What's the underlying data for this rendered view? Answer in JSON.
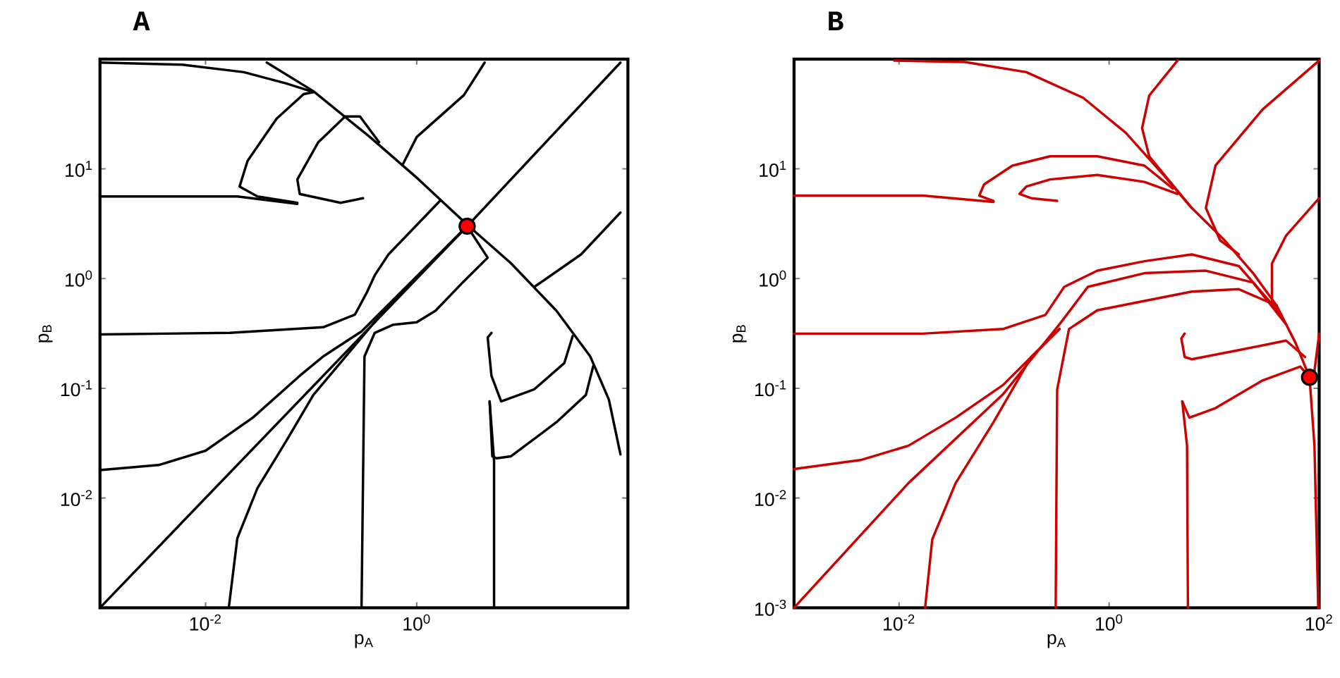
{
  "chart_data": [
    {
      "type": "line",
      "title": "A",
      "xlabel": "p$_{A}$",
      "ylabel": "p$_{B}$",
      "log": "xy",
      "xlim": [
        0.001,
        100
      ],
      "ylim": [
        0.001,
        100
      ],
      "xticks": [
        {
          "value": 0.01,
          "label": "10$^{-2}$"
        },
        {
          "value": 1,
          "label": "10$^{0}$"
        }
      ],
      "yticks": [
        {
          "value": 0.01,
          "label": "10$^{-2}$"
        },
        {
          "value": 0.1,
          "label": "10$^{-1}$"
        },
        {
          "value": 1,
          "label": "10$^{0}$"
        },
        {
          "value": 10,
          "label": "10$^{1}$"
        }
      ],
      "series": [
        {
          "color": "#000000",
          "x": [
            0.001,
            3,
            85
          ],
          "values": [
            0.001,
            3,
            93
          ]
        },
        {
          "color": "#000000",
          "x": [
            0.001,
            0.006,
            0.023,
            0.058,
            0.105
          ],
          "values": [
            93,
            89,
            76,
            60,
            50
          ]
        },
        {
          "color": "#000000",
          "x": [
            0.038,
            0.105,
            0.36,
            1,
            3,
            7.8,
            21,
            44,
            66,
            85
          ],
          "values": [
            93,
            51,
            19.5,
            8.3,
            3.1,
            1.38,
            0.51,
            0.195,
            0.079,
            0.025
          ]
        },
        {
          "color": "#000000",
          "x": [
            0.001,
            0.02,
            0.074
          ],
          "values": [
            5.6,
            5.6,
            4.8
          ]
        },
        {
          "color": "#000000",
          "x": [
            0.074,
            0.031,
            0.021,
            0.025,
            0.047,
            0.085,
            0.105
          ],
          "values": [
            4.9,
            5.6,
            6.9,
            11.8,
            28.6,
            48,
            50
          ]
        },
        {
          "color": "#000000",
          "x": [
            0.31,
            0.19,
            0.078,
            0.074,
            0.117,
            0.21,
            0.29,
            0.44
          ],
          "values": [
            5.4,
            4.9,
            5.9,
            8,
            17.5,
            30,
            30,
            17.5
          ]
        },
        {
          "color": "#000000",
          "x": [
            0.74,
            1,
            2.8,
            4.4
          ],
          "values": [
            11,
            19.5,
            47,
            93
          ]
        },
        {
          "color": "#000000",
          "x": [
            0.001,
            0.017,
            0.13,
            0.26,
            0.34,
            0.4,
            0.54,
            1.66
          ],
          "values": [
            0.31,
            0.32,
            0.36,
            0.47,
            0.76,
            1.07,
            1.66,
            5.1
          ]
        },
        {
          "color": "#000000",
          "x": [
            0.001,
            0.0036,
            0.01,
            0.028,
            0.078,
            0.13,
            0.3,
            3
          ],
          "values": [
            0.018,
            0.02,
            0.027,
            0.054,
            0.13,
            0.195,
            0.33,
            3
          ]
        },
        {
          "color": "#000000",
          "x": [
            0.0166,
            0.02,
            0.031,
            0.058,
            0.105,
            0.5,
            3
          ],
          "values": [
            0.001,
            0.0043,
            0.0123,
            0.033,
            0.087,
            0.52,
            3
          ]
        },
        {
          "color": "#000000",
          "x": [
            0.3,
            0.32,
            0.4,
            0.6,
            1,
            1.51,
            2.75,
            4.7,
            3
          ],
          "values": [
            0.001,
            0.195,
            0.32,
            0.38,
            0.4,
            0.51,
            0.93,
            1.55,
            3
          ]
        },
        {
          "color": "#000000",
          "x": [
            5.4,
            5.4,
            4.9
          ],
          "values": [
            0.001,
            0.022,
            0.076
          ]
        },
        {
          "color": "#000000",
          "x": [
            4.9,
            5.2,
            5.7,
            7.8,
            21,
            40,
            47
          ],
          "values": [
            0.076,
            0.024,
            0.023,
            0.024,
            0.049,
            0.087,
            0.16
          ]
        },
        {
          "color": "#000000",
          "x": [
            5.1,
            4.7,
            5.1,
            6.3,
            13,
            25,
            30
          ],
          "values": [
            0.32,
            0.29,
            0.13,
            0.076,
            0.098,
            0.17,
            0.3
          ]
        },
        {
          "color": "#000000",
          "x": [
            85,
            36,
            13
          ],
          "values": [
            4,
            1.66,
            0.84
          ]
        },
        {
          "type": "scatter",
          "color": "#ff0000",
          "x": [
            3
          ],
          "values": [
            3
          ]
        }
      ]
    },
    {
      "type": "line",
      "title": "B",
      "xlabel": "p$_{A}$",
      "ylabel": "p$_{B}$",
      "log": "xy",
      "xlim": [
        0.001,
        100
      ],
      "ylim": [
        0.001,
        100
      ],
      "xticks": [
        {
          "value": 0.01,
          "label": "10$^{-2}$"
        },
        {
          "value": 1,
          "label": "10$^{0}$"
        },
        {
          "value": 100,
          "label": "10$^{2}$"
        }
      ],
      "yticks": [
        {
          "value": 0.001,
          "label": "10$^{-3}$"
        },
        {
          "value": 0.01,
          "label": "10$^{-2}$"
        },
        {
          "value": 0.1,
          "label": "10$^{-1}$"
        },
        {
          "value": 1,
          "label": "10$^{0}$"
        },
        {
          "value": 10,
          "label": "10$^{1}$"
        }
      ],
      "series": [
        {
          "color": "#cc0000",
          "x": [
            0.009,
            0.0426,
            0.163,
            0.566,
            1.44,
            3.29,
            6.12,
            12.6,
            23.5,
            39.4,
            59.6,
            81
          ],
          "values": [
            97,
            94,
            76,
            44.4,
            21.3,
            8.8,
            4.4,
            2.23,
            1.12,
            0.566,
            0.259,
            0.126
          ]
        },
        {
          "color": "#cc0000",
          "x": [
            4.48,
            2.41,
            2.06,
            2.41,
            3.65,
            6.12
          ],
          "values": [
            97,
            46.6,
            23.5,
            13,
            8,
            4.4
          ]
        },
        {
          "color": "#cc0000",
          "x": [
            100,
            28.9,
            10.3,
            8.34,
            11.4,
            17.2
          ],
          "values": [
            97,
            34.7,
            10.7,
            4.4,
            2.23,
            1.66
          ]
        },
        {
          "color": "#cc0000",
          "x": [
            100,
            48.4,
            35.5,
            35.5,
            39.4
          ],
          "values": [
            5.4,
            2.46,
            1.37,
            0.625,
            0.566
          ]
        },
        {
          "color": "#cc0000",
          "x": [
            0.001,
            0.0168,
            0.0792
          ],
          "values": [
            5.7,
            5.7,
            5
          ]
        },
        {
          "color": "#cc0000",
          "x": [
            0.0792,
            0.058,
            0.0644,
            0.12,
            0.274,
            0.773,
            2.17,
            4.05
          ],
          "values": [
            5.1,
            5.7,
            7.2,
            10.7,
            13,
            13,
            10.7,
            6.6
          ]
        },
        {
          "color": "#cc0000",
          "x": [
            0.32,
            0.181,
            0.14,
            0.163,
            0.274,
            0.773,
            2.17,
            4.48
          ],
          "values": [
            5.1,
            5.4,
            5.9,
            6.9,
            8,
            8.8,
            7.6,
            5.9
          ]
        },
        {
          "color": "#cc0000",
          "x": [
            0.001,
            0.0168,
            0.0975,
            0.247,
            0.374,
            0.773,
            2.17,
            6.12,
            17.2,
            43.7
          ],
          "values": [
            0.315,
            0.315,
            0.347,
            0.466,
            0.84,
            1.18,
            1.44,
            1.66,
            1.3,
            0.466
          ]
        },
        {
          "color": "#cc0000",
          "x": [
            0.001,
            0.0123,
            0.0975,
            0.337,
            0.628,
            2.17,
            8.34,
            23.5,
            48.4
          ],
          "values": [
            0.001,
            0.0137,
            0.088,
            0.383,
            0.84,
            1.12,
            1.18,
            0.92,
            0.383
          ]
        },
        {
          "color": "#cc0000",
          "x": [
            0.001,
            0.0044,
            0.0123,
            0.0346,
            0.0975,
            0.337
          ],
          "values": [
            0.0184,
            0.0223,
            0.03,
            0.054,
            0.107,
            0.347
          ]
        },
        {
          "color": "#cc0000",
          "x": [
            0.0177,
            0.0207,
            0.0346,
            0.0792,
            0.181,
            0.337
          ],
          "values": [
            0.001,
            0.0042,
            0.0137,
            0.049,
            0.193,
            0.347
          ]
        },
        {
          "color": "#cc0000",
          "x": [
            0.31,
            0.32,
            0.415,
            0.773,
            2.17,
            6.12,
            17.2,
            39.4
          ],
          "values": [
            0.001,
            0.097,
            0.347,
            0.514,
            0.625,
            0.76,
            0.8,
            0.566
          ]
        },
        {
          "color": "#cc0000",
          "x": [
            5.24,
            4.87,
            5.24,
            6.12,
            17.2,
            48.4,
            73.3
          ],
          "values": [
            0.315,
            0.285,
            0.193,
            0.184,
            0.223,
            0.272,
            0.193
          ]
        },
        {
          "color": "#cc0000",
          "x": [
            5.63,
            5.52,
            4.97
          ],
          "values": [
            0.001,
            0.03,
            0.076
          ]
        },
        {
          "color": "#cc0000",
          "x": [
            4.97,
            5.81,
            10.3,
            28.9,
            66.1,
            81
          ],
          "values": [
            0.076,
            0.054,
            0.066,
            0.118,
            0.158,
            0.126
          ]
        },
        {
          "color": "#cc0000",
          "x": [
            81,
            90.2,
            98
          ],
          "values": [
            0.126,
            0.03,
            0.001
          ]
        },
        {
          "color": "#cc0000",
          "x": [
            100,
            90.2,
            81
          ],
          "values": [
            0.315,
            0.144,
            0.126
          ]
        },
        {
          "type": "scatter",
          "color": "#ff0000",
          "x": [
            81
          ],
          "values": [
            0.126
          ]
        }
      ]
    }
  ]
}
